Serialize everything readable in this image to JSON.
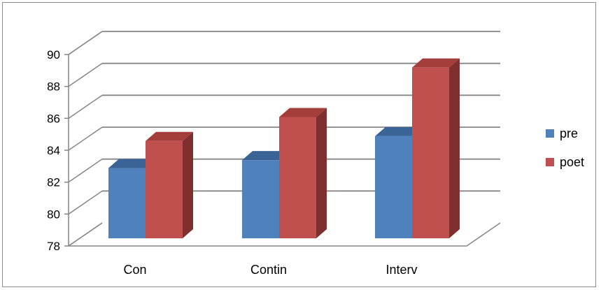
{
  "chart_data": {
    "type": "bar",
    "style": "3d-clustered-column",
    "categories": [
      "Con",
      "Contin",
      "Interv"
    ],
    "series": [
      {
        "name": "pre",
        "values": [
          82.4,
          82.9,
          84.4
        ],
        "color": "#4F81BD",
        "top_color": "#3B6496",
        "side_color": "#2F5486"
      },
      {
        "name": "poet",
        "values": [
          84.1,
          85.6,
          88.7
        ],
        "color": "#C0504D",
        "top_color": "#A33E3B",
        "side_color": "#7F302E"
      }
    ],
    "ylim": [
      78,
      90
    ],
    "yticks": [
      "78",
      "80",
      "82",
      "84",
      "86",
      "88",
      "90"
    ],
    "grid": true,
    "legend_position": "right"
  }
}
